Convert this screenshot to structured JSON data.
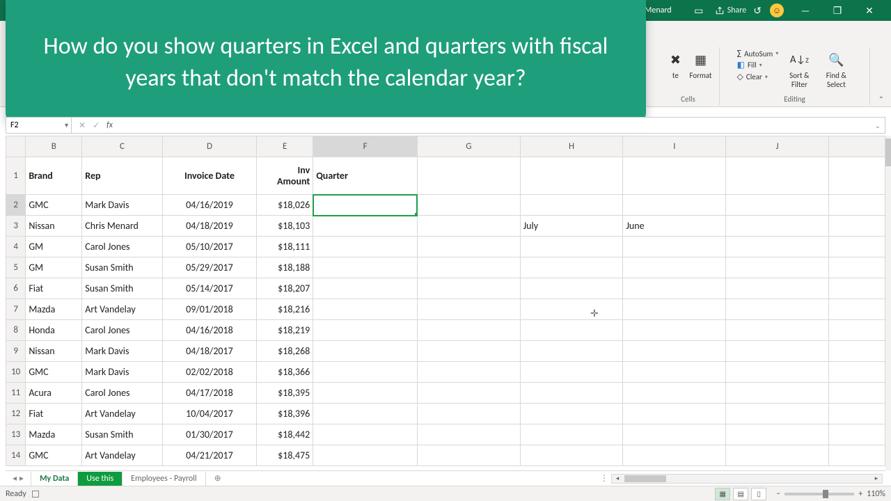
{
  "titlebar": {
    "user": "Chris Menard",
    "share": "Share",
    "window": {
      "min": "—",
      "max": "❐",
      "close": "✕"
    }
  },
  "ribbon": {
    "cells": {
      "format": "Format",
      "label": "Cells",
      "te": "te"
    },
    "editing": {
      "autosum": "AutoSum",
      "fill": "Fill",
      "clear": "Clear",
      "sort": "Sort & Filter",
      "find": "Find & Select",
      "label": "Editing"
    }
  },
  "overlay": {
    "text": "How do you show quarters in Excel and quarters with fiscal years that don't match the calendar year?"
  },
  "formula": {
    "ref": "F2",
    "fx": "fx"
  },
  "columns": [
    "",
    "B",
    "C",
    "D",
    "E",
    "F",
    "G",
    "H",
    "I",
    "J",
    ""
  ],
  "headers": {
    "brand": "Brand",
    "rep": "Rep",
    "invdate": "Invoice Date",
    "invamt": "Inv Amount",
    "quarter": "Quarter"
  },
  "rows": [
    {
      "n": "1"
    },
    {
      "n": "2",
      "brand": "GMC",
      "rep": "Mark Davis",
      "date": "04/16/2019",
      "amt": "$18,026"
    },
    {
      "n": "3",
      "brand": "Nissan",
      "rep": "Chris Menard",
      "date": "04/18/2019",
      "amt": "$18,103",
      "h": "July",
      "i": "June"
    },
    {
      "n": "4",
      "brand": "GM",
      "rep": "Carol Jones",
      "date": "05/10/2017",
      "amt": "$18,111"
    },
    {
      "n": "5",
      "brand": "GM",
      "rep": "Susan Smith",
      "date": "05/29/2017",
      "amt": "$18,188"
    },
    {
      "n": "6",
      "brand": "Fiat",
      "rep": "Susan Smith",
      "date": "05/14/2017",
      "amt": "$18,207"
    },
    {
      "n": "7",
      "brand": "Mazda",
      "rep": "Art Vandelay",
      "date": "09/01/2018",
      "amt": "$18,216"
    },
    {
      "n": "8",
      "brand": "Honda",
      "rep": "Carol Jones",
      "date": "04/16/2018",
      "amt": "$18,219"
    },
    {
      "n": "9",
      "brand": "Nissan",
      "rep": "Mark Davis",
      "date": "04/18/2017",
      "amt": "$18,268"
    },
    {
      "n": "10",
      "brand": "GMC",
      "rep": "Mark Davis",
      "date": "02/02/2018",
      "amt": "$18,366"
    },
    {
      "n": "11",
      "brand": "Acura",
      "rep": "Carol Jones",
      "date": "04/17/2018",
      "amt": "$18,395"
    },
    {
      "n": "12",
      "brand": "Fiat",
      "rep": "Art Vandelay",
      "date": "10/04/2017",
      "amt": "$18,396"
    },
    {
      "n": "13",
      "brand": "Mazda",
      "rep": "Susan Smith",
      "date": "01/30/2017",
      "amt": "$18,442"
    },
    {
      "n": "14",
      "brand": "GMC",
      "rep": "Art Vandelay",
      "date": "04/21/2017",
      "amt": "$18,475"
    }
  ],
  "tabs": {
    "t1": "My Data",
    "t2": "Use this",
    "t3": "Employees - Payroll"
  },
  "status": {
    "ready": "Ready",
    "zoom": "110%"
  },
  "colors": {
    "overlay": "#1f9e7c",
    "tabActive": "#0d9c3e",
    "selection": "#1f9e4a",
    "titlebar": "#0d734b"
  }
}
